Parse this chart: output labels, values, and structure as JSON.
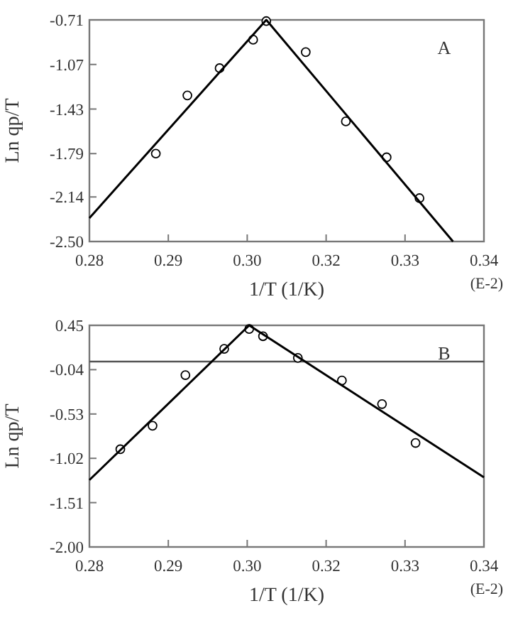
{
  "chart_data": [
    {
      "type": "scatter",
      "xlabel": "1/T (1/K)",
      "ylabel": "Ln qp/T",
      "annotations": [
        "A",
        "(E-2)"
      ],
      "xlim": [
        0.28,
        0.34
      ],
      "xticks": [
        {
          "value": 0.28,
          "label": "0.28"
        },
        {
          "value": 0.292,
          "label": "0.29"
        },
        {
          "value": 0.304,
          "label": "0.30"
        },
        {
          "value": 0.316,
          "label": "0.32"
        },
        {
          "value": 0.328,
          "label": "0.33"
        },
        {
          "value": 0.34,
          "label": "0.34"
        }
      ],
      "ylim": [
        -2.5,
        -0.71
      ],
      "yticks": [
        {
          "value": -2.5,
          "label": "-2.50"
        },
        -2.14,
        -1.79,
        -1.43,
        -1.07,
        -0.71
      ],
      "series": [
        {
          "marker": "circle",
          "color": "#000000",
          "x": [
            0.2901,
            0.2949,
            0.2998,
            0.3049,
            0.3069,
            0.3129,
            0.319,
            0.3252,
            0.3302
          ],
          "values": [
            -1.79,
            -1.32,
            -1.1,
            -0.87,
            -0.72,
            -0.97,
            -1.53,
            -1.82,
            -2.15
          ]
        },
        {
          "type": "line",
          "color": "#000000",
          "x": [
            0.28,
            0.3069,
            0.3353
          ],
          "values": [
            -2.31,
            -0.71,
            -2.5
          ]
        }
      ]
    },
    {
      "type": "scatter",
      "xlabel": "1/T (1/K)",
      "ylabel": "Ln qp/T",
      "annotations": [
        "B",
        "(E-2)"
      ],
      "xlim": [
        0.28,
        0.34
      ],
      "xticks": [
        {
          "value": 0.28,
          "label": "0.28"
        },
        {
          "value": 0.292,
          "label": "0.29"
        },
        {
          "value": 0.304,
          "label": "0.30"
        },
        {
          "value": 0.316,
          "label": "0.32"
        },
        {
          "value": 0.328,
          "label": "0.33"
        },
        {
          "value": 0.34,
          "label": "0.34"
        }
      ],
      "ylim": [
        -2.0,
        0.45
      ],
      "yticks": [
        {
          "value": -2.0,
          "label": "-2.00"
        },
        -1.51,
        -1.02,
        -0.53,
        -0.04,
        0.45
      ],
      "ref_lines": [
        {
          "axis": "y",
          "value": 0.05,
          "color": "#555555"
        }
      ],
      "series": [
        {
          "marker": "circle",
          "color": "#000000",
          "x": [
            0.2847,
            0.2896,
            0.2946,
            0.3005,
            0.3043,
            0.3064,
            0.3117,
            0.3184,
            0.3245,
            0.3296
          ],
          "values": [
            -0.92,
            -0.66,
            -0.1,
            0.19,
            0.41,
            0.33,
            0.09,
            -0.16,
            -0.42,
            -0.85
          ]
        },
        {
          "type": "line",
          "color": "#000000",
          "x": [
            0.28,
            0.3043,
            0.34
          ],
          "values": [
            -1.26,
            0.45,
            -1.23
          ]
        }
      ]
    }
  ]
}
